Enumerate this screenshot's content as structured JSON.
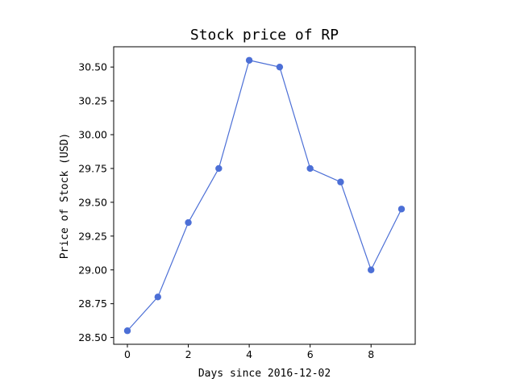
{
  "chart_data": {
    "type": "line",
    "title": "Stock price of RP",
    "xlabel": "Days since 2016-12-02",
    "ylabel": "Price of Stock (USD)",
    "x": [
      0,
      1,
      2,
      3,
      4,
      5,
      6,
      7,
      8,
      9
    ],
    "series": [
      {
        "values": [
          28.55,
          28.8,
          29.35,
          29.75,
          30.55,
          30.5,
          29.75,
          29.65,
          29.0,
          29.45
        ]
      }
    ],
    "xlim": [
      -0.45,
      9.45
    ],
    "ylim": [
      28.45,
      30.65
    ],
    "xticks": [
      "0",
      "2",
      "4",
      "6",
      "8"
    ],
    "yticks": [
      "28.50",
      "28.75",
      "29.00",
      "29.25",
      "29.50",
      "29.75",
      "30.00",
      "30.25",
      "30.50"
    ],
    "grid": false,
    "legend": "none",
    "line_color": "#4c6fd6",
    "marker": "circle"
  }
}
